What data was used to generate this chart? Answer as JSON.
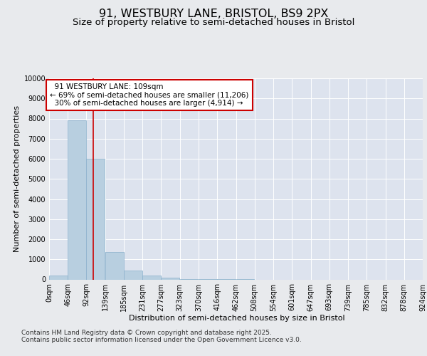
{
  "title_line1": "91, WESTBURY LANE, BRISTOL, BS9 2PX",
  "title_line2": "Size of property relative to semi-detached houses in Bristol",
  "xlabel": "Distribution of semi-detached houses by size in Bristol",
  "ylabel": "Number of semi-detached properties",
  "background_color": "#dde3ee",
  "bar_color": "#b8cfe0",
  "bar_edge_color": "#8ab0cc",
  "grid_color": "#ffffff",
  "fig_background": "#e8eaed",
  "vline_color": "#cc0000",
  "annotation_box_color": "#cc0000",
  "bin_labels": [
    "0sqm",
    "46sqm",
    "92sqm",
    "139sqm",
    "185sqm",
    "231sqm",
    "277sqm",
    "323sqm",
    "370sqm",
    "416sqm",
    "462sqm",
    "508sqm",
    "554sqm",
    "601sqm",
    "647sqm",
    "693sqm",
    "739sqm",
    "785sqm",
    "832sqm",
    "878sqm",
    "924sqm"
  ],
  "bar_values": [
    200,
    7900,
    6000,
    1350,
    450,
    200,
    100,
    20,
    5,
    2,
    1,
    0,
    0,
    0,
    0,
    0,
    0,
    0,
    0,
    0
  ],
  "bin_edges": [
    0,
    46,
    92,
    139,
    185,
    231,
    277,
    323,
    370,
    416,
    462,
    508,
    554,
    601,
    647,
    693,
    739,
    785,
    832,
    878,
    924
  ],
  "property_size": 109,
  "property_label": "91 WESTBURY LANE: 109sqm",
  "smaller_pct": "69%",
  "smaller_n": "11,206",
  "larger_pct": "30%",
  "larger_n": "4,914",
  "ylim": [
    0,
    10000
  ],
  "yticks": [
    0,
    1000,
    2000,
    3000,
    4000,
    5000,
    6000,
    7000,
    8000,
    9000,
    10000
  ],
  "footnote1": "Contains HM Land Registry data © Crown copyright and database right 2025.",
  "footnote2": "Contains public sector information licensed under the Open Government Licence v3.0.",
  "title_fontsize": 11.5,
  "subtitle_fontsize": 9.5,
  "axis_label_fontsize": 8,
  "tick_fontsize": 7,
  "annotation_fontsize": 7.5,
  "footnote_fontsize": 6.5
}
